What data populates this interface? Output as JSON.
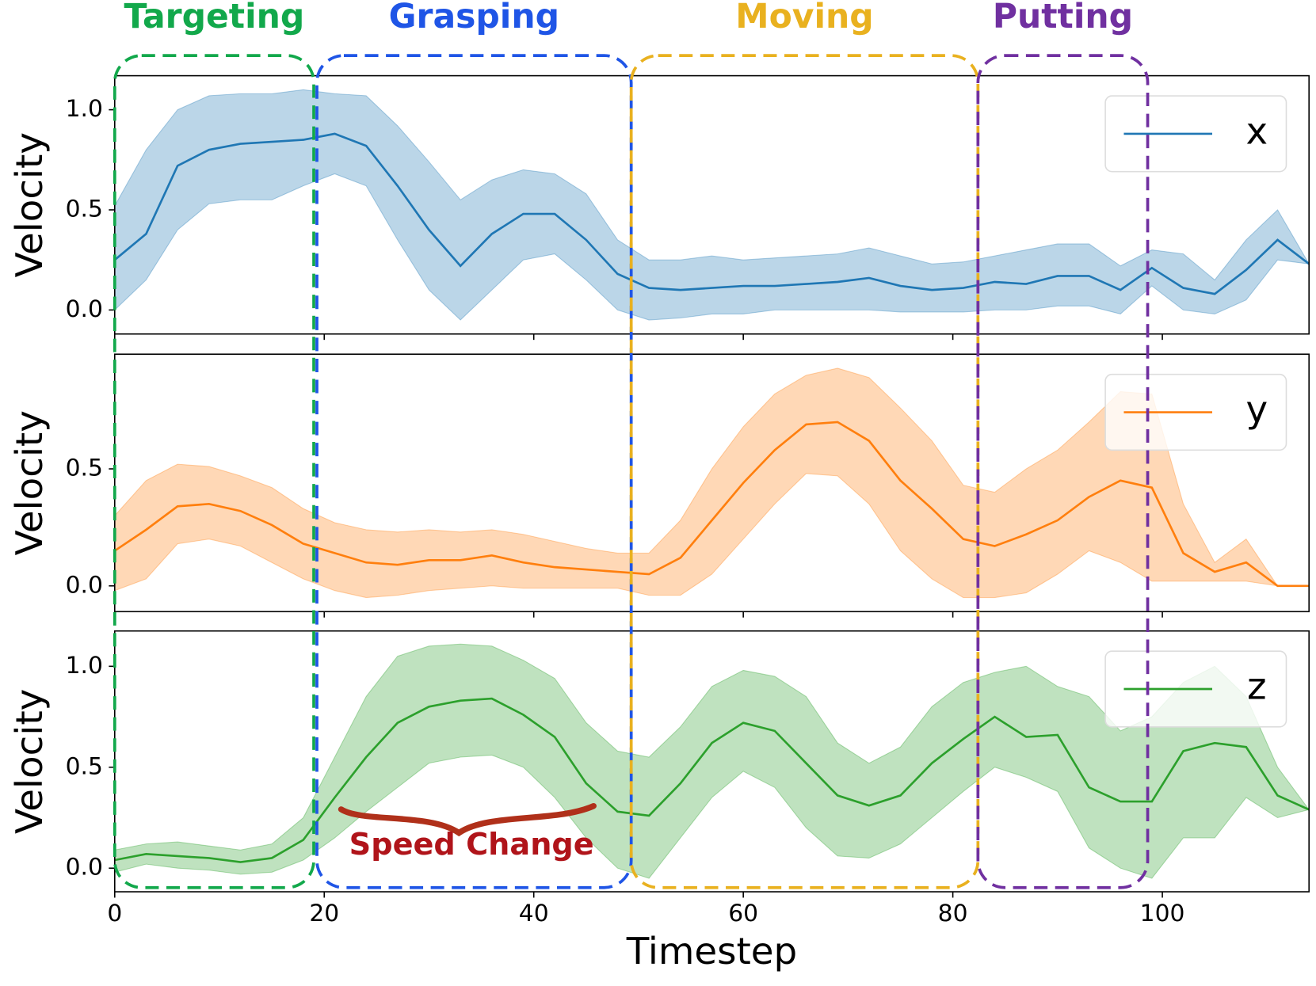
{
  "chart_data": [
    {
      "type": "line",
      "ylabel": "Velocity",
      "legend": "upper right",
      "x": [
        0,
        3,
        6,
        9,
        12,
        15,
        18,
        21,
        24,
        27,
        30,
        33,
        36,
        39,
        42,
        45,
        48,
        51,
        54,
        57,
        60,
        63,
        66,
        69,
        72,
        75,
        78,
        81,
        84,
        87,
        90,
        93,
        96,
        99,
        102,
        105,
        108,
        111,
        114
      ],
      "xlim": [
        0,
        114
      ],
      "xticks": [
        0,
        20,
        40,
        60,
        80,
        100
      ],
      "ylim": [
        -0.12,
        1.17
      ],
      "yticks": [
        {
          "value": 0,
          "label": "0.0"
        },
        0.5,
        {
          "value": 1,
          "label": "1.0"
        }
      ],
      "series": [
        {
          "name": "x",
          "color": "#1f77b4",
          "values": [
            0.25,
            0.38,
            0.72,
            0.8,
            0.83,
            0.84,
            0.85,
            0.88,
            0.82,
            0.62,
            0.4,
            0.22,
            0.38,
            0.48,
            0.48,
            0.35,
            0.18,
            0.11,
            0.1,
            0.11,
            0.12,
            0.12,
            0.13,
            0.14,
            0.16,
            0.12,
            0.1,
            0.11,
            0.14,
            0.13,
            0.17,
            0.17,
            0.1,
            0.21,
            0.11,
            0.08,
            0.2,
            0.35,
            0.23
          ],
          "upper": [
            0.52,
            0.8,
            1.0,
            1.07,
            1.08,
            1.08,
            1.1,
            1.08,
            1.07,
            0.92,
            0.74,
            0.55,
            0.65,
            0.7,
            0.68,
            0.58,
            0.35,
            0.25,
            0.25,
            0.27,
            0.25,
            0.26,
            0.27,
            0.28,
            0.31,
            0.27,
            0.23,
            0.24,
            0.27,
            0.3,
            0.33,
            0.33,
            0.22,
            0.3,
            0.28,
            0.15,
            0.35,
            0.5,
            0.23
          ],
          "lower": [
            0.0,
            0.15,
            0.4,
            0.53,
            0.55,
            0.55,
            0.62,
            0.68,
            0.62,
            0.35,
            0.1,
            -0.05,
            0.1,
            0.25,
            0.28,
            0.15,
            0.0,
            -0.05,
            -0.04,
            -0.02,
            -0.02,
            0.0,
            0.0,
            0.0,
            0.0,
            -0.01,
            -0.01,
            -0.01,
            0.0,
            0.0,
            0.02,
            0.02,
            -0.02,
            0.12,
            0.0,
            -0.02,
            0.05,
            0.25,
            0.23
          ]
        }
      ]
    },
    {
      "type": "line",
      "ylabel": "Velocity",
      "legend": "upper right",
      "x": [
        0,
        3,
        6,
        9,
        12,
        15,
        18,
        21,
        24,
        27,
        30,
        33,
        36,
        39,
        42,
        45,
        48,
        51,
        54,
        57,
        60,
        63,
        66,
        69,
        72,
        75,
        78,
        81,
        84,
        87,
        90,
        93,
        96,
        99,
        102,
        105,
        108,
        111,
        114
      ],
      "xlim": [
        0,
        114
      ],
      "xticks": [
        0,
        20,
        40,
        60,
        80,
        100
      ],
      "ylim": [
        -0.11,
        0.99
      ],
      "yticks": [
        {
          "value": 0,
          "label": "0.0"
        },
        0.5
      ],
      "series": [
        {
          "name": "y",
          "color": "#ff7f0e",
          "values": [
            0.15,
            0.24,
            0.34,
            0.35,
            0.32,
            0.26,
            0.18,
            0.14,
            0.1,
            0.09,
            0.11,
            0.11,
            0.13,
            0.1,
            0.08,
            0.07,
            0.06,
            0.05,
            0.12,
            0.28,
            0.44,
            0.58,
            0.69,
            0.7,
            0.62,
            0.45,
            0.33,
            0.2,
            0.17,
            0.22,
            0.28,
            0.38,
            0.45,
            0.42,
            0.14,
            0.06,
            0.1,
            0.0,
            0.0
          ],
          "upper": [
            0.3,
            0.45,
            0.52,
            0.51,
            0.47,
            0.42,
            0.33,
            0.27,
            0.24,
            0.23,
            0.24,
            0.23,
            0.24,
            0.22,
            0.19,
            0.16,
            0.14,
            0.14,
            0.28,
            0.5,
            0.68,
            0.82,
            0.9,
            0.93,
            0.89,
            0.76,
            0.62,
            0.43,
            0.4,
            0.5,
            0.58,
            0.7,
            0.83,
            0.82,
            0.35,
            0.1,
            0.2,
            0.0,
            0.0
          ],
          "lower": [
            -0.02,
            0.03,
            0.18,
            0.2,
            0.17,
            0.1,
            0.03,
            -0.02,
            -0.05,
            -0.04,
            -0.02,
            -0.01,
            0.0,
            -0.01,
            -0.01,
            -0.01,
            -0.01,
            -0.04,
            -0.04,
            0.05,
            0.2,
            0.35,
            0.48,
            0.47,
            0.35,
            0.15,
            0.03,
            -0.05,
            -0.05,
            -0.03,
            0.05,
            0.15,
            0.1,
            0.02,
            0.02,
            0.02,
            0.02,
            0.0,
            0.0
          ]
        }
      ]
    },
    {
      "type": "line",
      "ylabel": "Velocity",
      "xlabel": "Timestep",
      "legend": "upper right",
      "x": [
        0,
        3,
        6,
        9,
        12,
        15,
        18,
        21,
        24,
        27,
        30,
        33,
        36,
        39,
        42,
        45,
        48,
        51,
        54,
        57,
        60,
        63,
        66,
        69,
        72,
        75,
        78,
        81,
        84,
        87,
        90,
        93,
        96,
        99,
        102,
        105,
        108,
        111,
        114
      ],
      "xlim": [
        0,
        114
      ],
      "xticks": [
        0,
        20,
        40,
        60,
        80,
        100
      ],
      "ylim": [
        -0.117,
        1.175
      ],
      "yticks": [
        {
          "value": 0,
          "label": "0.0"
        },
        0.5,
        {
          "value": 1,
          "label": "1.0"
        }
      ],
      "series": [
        {
          "name": "z",
          "color": "#2ca02c",
          "values": [
            0.04,
            0.07,
            0.06,
            0.05,
            0.03,
            0.05,
            0.14,
            0.35,
            0.55,
            0.72,
            0.8,
            0.83,
            0.84,
            0.76,
            0.65,
            0.42,
            0.28,
            0.26,
            0.42,
            0.62,
            0.72,
            0.68,
            0.52,
            0.36,
            0.31,
            0.36,
            0.52,
            0.64,
            0.75,
            0.65,
            0.66,
            0.4,
            0.33,
            0.33,
            0.58,
            0.62,
            0.6,
            0.36,
            0.29
          ],
          "upper": [
            0.09,
            0.12,
            0.13,
            0.11,
            0.09,
            0.12,
            0.25,
            0.55,
            0.85,
            1.05,
            1.1,
            1.11,
            1.1,
            1.03,
            0.94,
            0.72,
            0.58,
            0.55,
            0.7,
            0.9,
            0.98,
            0.95,
            0.85,
            0.62,
            0.52,
            0.6,
            0.8,
            0.92,
            0.97,
            1.0,
            0.9,
            0.85,
            0.68,
            0.75,
            0.92,
            1.0,
            0.85,
            0.5,
            0.29
          ],
          "lower": [
            -0.02,
            0.02,
            0.0,
            -0.01,
            -0.03,
            -0.02,
            0.04,
            0.15,
            0.28,
            0.4,
            0.52,
            0.55,
            0.56,
            0.5,
            0.35,
            0.15,
            0.0,
            -0.05,
            0.15,
            0.35,
            0.48,
            0.4,
            0.2,
            0.06,
            0.05,
            0.12,
            0.25,
            0.38,
            0.5,
            0.45,
            0.38,
            0.1,
            0.0,
            -0.05,
            0.15,
            0.15,
            0.35,
            0.25,
            0.29
          ]
        }
      ]
    }
  ],
  "phases": [
    {
      "label": "Targeting",
      "color": "#12a84b",
      "start": 0,
      "end": 19
    },
    {
      "label": "Grasping",
      "color": "#1f55e6",
      "start": 19.3,
      "end": 49.3
    },
    {
      "label": "Moving",
      "color": "#e9b11f",
      "start": 49.3,
      "end": 82.4
    },
    {
      "label": "Putting",
      "color": "#7030a0",
      "start": 82.4,
      "end": 98.6
    }
  ],
  "annotation": {
    "text": "Speed Change",
    "color": "#b0141a"
  }
}
